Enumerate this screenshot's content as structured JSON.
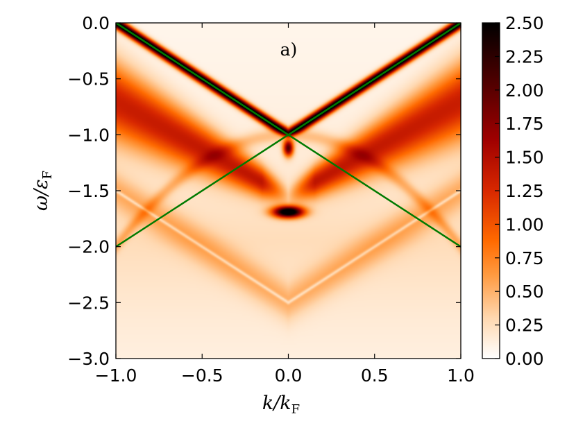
{
  "chart_data": {
    "type": "heatmap",
    "title": "",
    "annotation": "a)",
    "xlabel": {
      "main": "k/k",
      "sub": "F"
    },
    "ylabel": {
      "main": "ω/ε",
      "sub": "F"
    },
    "xlim": [
      -1.0,
      1.0
    ],
    "ylim": [
      -3.0,
      0.0
    ],
    "x_ticks": [
      -1.0,
      -0.5,
      0.0,
      0.5,
      1.0
    ],
    "x_tick_labels": [
      "−1.0",
      "−0.5",
      "0.0",
      "0.5",
      "1.0"
    ],
    "y_ticks": [
      0.0,
      -0.5,
      -1.0,
      -1.5,
      -2.0,
      -2.5,
      -3.0
    ],
    "y_tick_labels": [
      "0.0",
      "−0.5",
      "−1.0",
      "−1.5",
      "−2.0",
      "−2.5",
      "−3.0"
    ],
    "colorbar": {
      "range": [
        0.0,
        2.5
      ],
      "ticks": [
        0.0,
        0.25,
        0.5,
        0.75,
        1.0,
        1.25,
        1.5,
        1.75,
        2.0,
        2.25,
        2.5
      ],
      "tick_labels": [
        "0.00",
        "0.25",
        "0.50",
        "0.75",
        "1.00",
        "1.25",
        "1.50",
        "1.75",
        "2.00",
        "2.25",
        "2.50"
      ],
      "colormap": "gist_heat_r"
    },
    "grid": false,
    "overlay_lines": [
      {
        "color": "#007a00",
        "points": [
          [
            -1.0,
            0.0
          ],
          [
            1.0,
            -2.0
          ]
        ]
      },
      {
        "color": "#007a00",
        "points": [
          [
            -1.0,
            -2.0
          ],
          [
            1.0,
            0.0
          ]
        ]
      }
    ]
  }
}
